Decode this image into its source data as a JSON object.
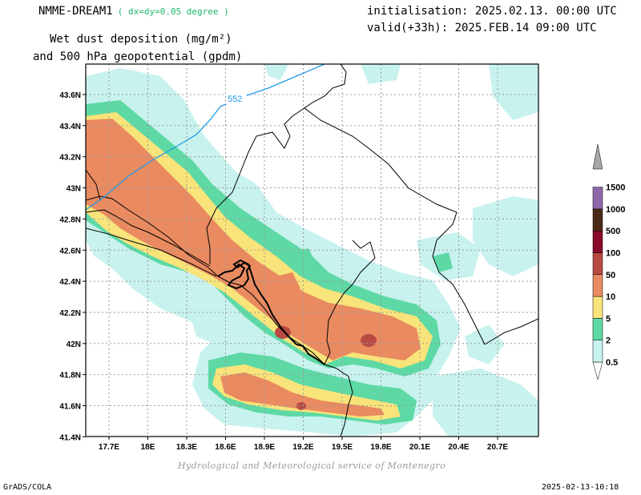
{
  "header": {
    "model": "NMME-DREAM1",
    "resolution": "( dx=dy=0.05 degree )",
    "initialisation": "initialisation: 2025.02.13. 00:00 UTC",
    "valid": "valid(+33h): 2025.FEB.14 09:00 UTC",
    "title_line1": "Wet dust deposition (mg/m²)",
    "title_line2": "and 500 hPa geopotential (gpdm)"
  },
  "map": {
    "lat_ticks": [
      "43.6N",
      "43.4N",
      "43.2N",
      "43N",
      "42.8N",
      "42.6N",
      "42.4N",
      "42.2N",
      "42N",
      "41.8N",
      "41.6N",
      "41.4N"
    ],
    "lon_ticks": [
      "17.7E",
      "18E",
      "18.3E",
      "18.6E",
      "18.9E",
      "19.2E",
      "19.5E",
      "19.8E",
      "20.1E",
      "20.4E",
      "20.7E"
    ],
    "contour_label": "552",
    "contour_color": "#1e9be8"
  },
  "legend": {
    "levels": [
      {
        "label": "0.5",
        "color": "#c8f2ee"
      },
      {
        "label": "2",
        "color": "#5ed9a5"
      },
      {
        "label": "5",
        "color": "#f8e47a"
      },
      {
        "label": "10",
        "color": "#e98a60"
      },
      {
        "label": "50",
        "color": "#b84a42"
      },
      {
        "label": "100",
        "color": "#8a0a2c"
      },
      {
        "label": "500",
        "color": "#4a2a18"
      },
      {
        "label": "1000",
        "color": "#8f68aa"
      },
      {
        "label": "1500",
        "color": "#a8a8a8"
      }
    ]
  },
  "footer": {
    "credit": "Hydrological and Meteorological service of Montenegro",
    "software": "GrADS/COLA",
    "timestamp": "2025-02-13-10:18"
  }
}
